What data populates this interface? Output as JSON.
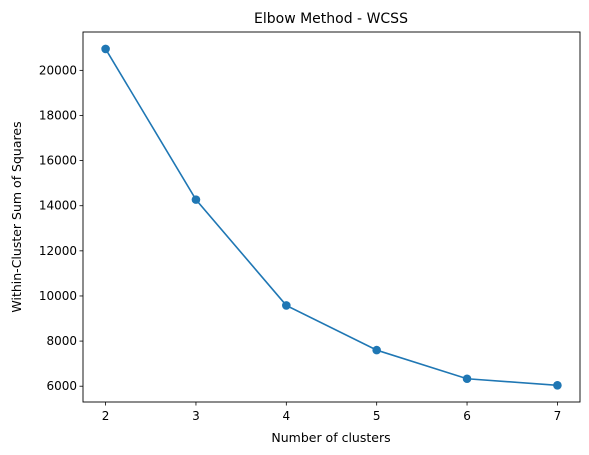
{
  "chart_data": {
    "type": "line",
    "title": "Elbow Method - WCSS",
    "xlabel": "Number of clusters",
    "ylabel": "Within-Cluster Sum of Squares",
    "x": [
      2,
      3,
      4,
      5,
      6,
      7
    ],
    "series": [
      {
        "values": [
          20950,
          14270,
          9580,
          7600,
          6330,
          6040
        ],
        "color": "#1f77b4",
        "marker": "circle"
      }
    ],
    "xlim": [
      1.75,
      7.25
    ],
    "ylim": [
      5300,
      21700
    ],
    "xticks": [
      2,
      3,
      4,
      5,
      6,
      7
    ],
    "xtick_labels": [
      "2",
      "3",
      "4",
      "5",
      "6",
      "7"
    ],
    "yticks": [
      6000,
      8000,
      10000,
      12000,
      14000,
      16000,
      18000,
      20000
    ],
    "ytick_labels": [
      "6000",
      "8000",
      "10000",
      "12000",
      "14000",
      "16000",
      "18000",
      "20000"
    ],
    "grid": false,
    "legend": "none"
  }
}
